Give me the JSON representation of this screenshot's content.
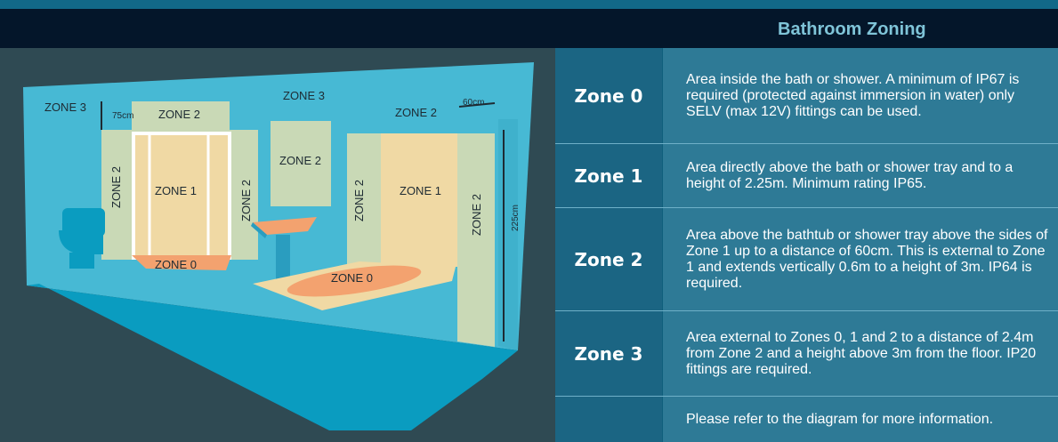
{
  "header": {
    "title": "Bathroom Zoning"
  },
  "diagram": {
    "labels": {
      "zone3_left": "ZONE 3",
      "dim_75": "75cm",
      "zone2_top_left": "ZONE 2",
      "zone3_center": "ZONE 3",
      "zone2_top_right": "ZONE 2",
      "dim_60": "60cm",
      "zone2_vert_left": "ZONE 2",
      "zone1_shower": "ZONE 1",
      "zone2_vert_mid": "ZONE 2",
      "zone2_basin": "ZONE 2",
      "zone2_vert_bath_left": "ZONE 2",
      "zone1_bath": "ZONE 1",
      "zone2_vert_bath_right": "ZONE 2",
      "dim_225": "225cm",
      "zone0_shower": "ZONE 0",
      "zone0_bath": "ZONE 0"
    }
  },
  "table": {
    "rows": [
      {
        "zone": "Zone 0",
        "description": "Area inside the bath or shower. A minimum of IP67 is required (protected against immersion in water) only SELV (max 12V) fittings can be used."
      },
      {
        "zone": "Zone 1",
        "description": "Area directly above the bath or shower tray and to a height of 2.25m. Minimum rating IP65."
      },
      {
        "zone": "Zone 2",
        "description": "Area above the bathtub or shower tray above the sides of Zone 1 up to a distance of 60cm. This is external to Zone 1 and extends vertically 0.6m to a height of 3m. IP64 is required."
      },
      {
        "zone": "Zone 3",
        "description": "Area external to Zones 0, 1 and 2 to a distance of 2.4m from Zone 2 and a height above 3m from the floor. IP20 fittings are required."
      }
    ],
    "footer": "Please refer to the diagram for more information."
  },
  "colors": {
    "header_bg": "#04162a",
    "title": "#7fc4d8",
    "zone_cell": "#1b6583",
    "desc_cell": "#2e7a96",
    "wall": "#47b9d4",
    "floor": "#0a9cc0",
    "zone1": "#f0d9a4",
    "zone2": "#c9d9b6",
    "zone0": "#f3a26f"
  }
}
